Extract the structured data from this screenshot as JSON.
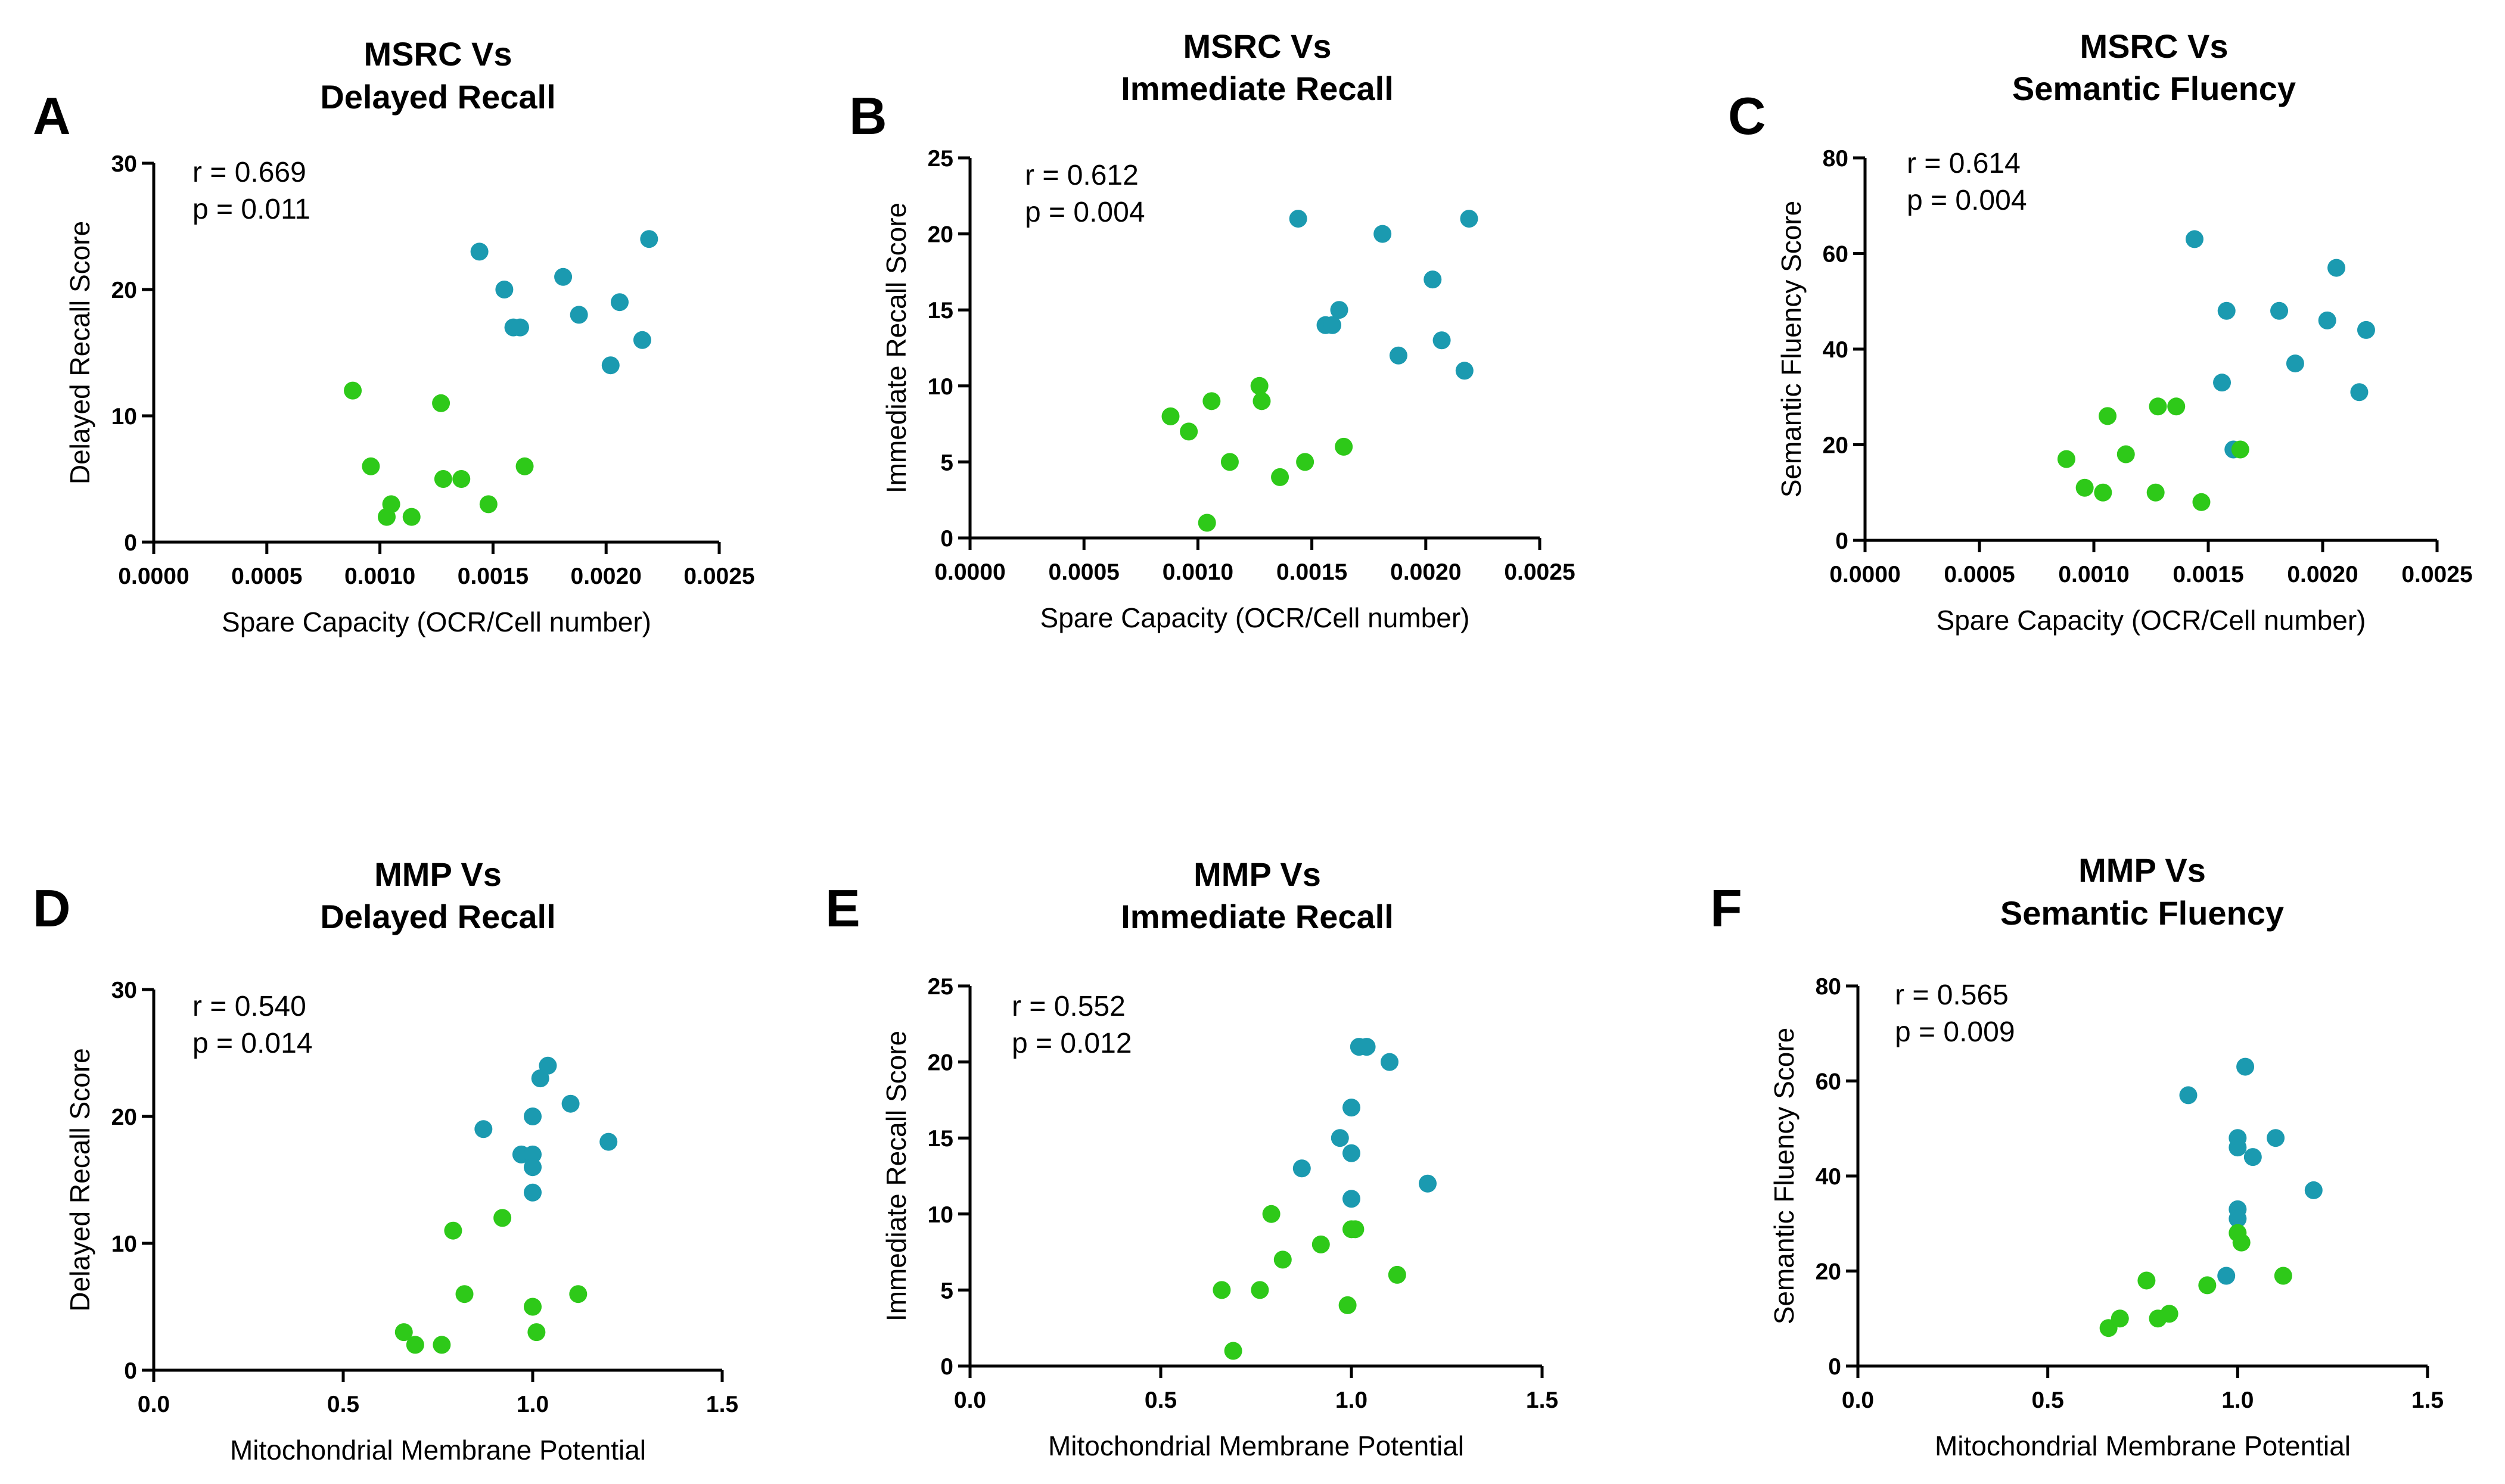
{
  "colors": {
    "group_blue": "#1b9ab0",
    "group_green": "#2ec919"
  },
  "chart_data": [
    {
      "id": "A",
      "type": "scatter",
      "title_line1": "MSRC Vs",
      "title_line2": "Delayed Recall",
      "xlabel": "Spare Capacity (OCR/Cell number)",
      "ylabel": "Delayed Recall Score",
      "xlim": [
        0,
        0.0025
      ],
      "ylim": [
        0,
        30
      ],
      "xticks": [
        "0.0000",
        "0.0005",
        "0.0010",
        "0.0015",
        "0.0020",
        "0.0025"
      ],
      "yticks": [
        "0",
        "10",
        "20",
        "30"
      ],
      "r_text": "r = 0.669",
      "p_text": "p = 0.011",
      "series": [
        {
          "name": "blue",
          "color": "#1b9ab0",
          "x": [
            0.00144,
            0.00155,
            0.00159,
            0.00162,
            0.00181,
            0.00188,
            0.00202,
            0.00206,
            0.00216,
            0.00219
          ],
          "y": [
            23,
            20,
            17,
            17,
            21,
            18,
            14,
            19,
            16,
            24
          ]
        },
        {
          "name": "green",
          "color": "#2ec919",
          "x": [
            0.00088,
            0.00096,
            0.00103,
            0.00105,
            0.00114,
            0.00127,
            0.00128,
            0.00136,
            0.00148,
            0.00164
          ],
          "y": [
            12,
            6,
            2,
            3,
            2,
            11,
            5,
            5,
            3,
            6
          ]
        }
      ]
    },
    {
      "id": "B",
      "type": "scatter",
      "title_line1": "MSRC Vs",
      "title_line2": "Immediate Recall",
      "xlabel": "Spare Capacity (OCR/Cell number)",
      "ylabel": "Immediate Recall Score",
      "xlim": [
        0,
        0.0025
      ],
      "ylim": [
        0,
        25
      ],
      "xticks": [
        "0.0000",
        "0.0005",
        "0.0010",
        "0.0015",
        "0.0020",
        "0.0025"
      ],
      "yticks": [
        "0",
        "5",
        "10",
        "15",
        "20",
        "25"
      ],
      "r_text": "r = 0.612",
      "p_text": "p = 0.004",
      "series": [
        {
          "name": "blue",
          "color": "#1b9ab0",
          "x": [
            0.00144,
            0.00156,
            0.00159,
            0.00162,
            0.00181,
            0.00188,
            0.00203,
            0.00207,
            0.00217,
            0.00219
          ],
          "y": [
            21,
            14,
            14,
            15,
            20,
            12,
            17,
            13,
            11,
            21
          ]
        },
        {
          "name": "green",
          "color": "#2ec919",
          "x": [
            0.00088,
            0.00096,
            0.00104,
            0.00106,
            0.00114,
            0.00127,
            0.00128,
            0.00136,
            0.00147,
            0.00164
          ],
          "y": [
            8,
            7,
            1,
            9,
            5,
            10,
            9,
            4,
            5,
            6
          ]
        }
      ]
    },
    {
      "id": "C",
      "type": "scatter",
      "title_line1": "MSRC Vs",
      "title_line2": "Semantic Fluency",
      "xlabel": "Spare Capacity (OCR/Cell number)",
      "ylabel": "Semantic Fluency Score",
      "xlim": [
        0,
        0.0025
      ],
      "ylim": [
        0,
        80
      ],
      "xticks": [
        "0.0000",
        "0.0005",
        "0.0010",
        "0.0015",
        "0.0020",
        "0.0025"
      ],
      "yticks": [
        "0",
        "20",
        "40",
        "60",
        "80"
      ],
      "r_text": "r = 0.614",
      "p_text": "p = 0.004",
      "series": [
        {
          "name": "blue",
          "color": "#1b9ab0",
          "x": [
            0.00144,
            0.00156,
            0.00158,
            0.00161,
            0.00181,
            0.00188,
            0.00202,
            0.00206,
            0.00216,
            0.00219
          ],
          "y": [
            63,
            33,
            48,
            19,
            48,
            37,
            46,
            57,
            31,
            44
          ]
        },
        {
          "name": "green",
          "color": "#2ec919",
          "x": [
            0.00088,
            0.00096,
            0.00104,
            0.00106,
            0.00114,
            0.00127,
            0.00128,
            0.00136,
            0.00147,
            0.00164
          ],
          "y": [
            17,
            11,
            10,
            26,
            18,
            10,
            28,
            28,
            8,
            19
          ]
        }
      ]
    },
    {
      "id": "D",
      "type": "scatter",
      "title_line1": "MMP Vs",
      "title_line2": "Delayed Recall",
      "xlabel": "Mitochondrial Membrane Potential",
      "ylabel": "Delayed Recall Score",
      "xlim": [
        0,
        1.5
      ],
      "ylim": [
        0,
        30
      ],
      "xticks": [
        "0.0",
        "0.5",
        "1.0",
        "1.5"
      ],
      "yticks": [
        "0",
        "10",
        "20",
        "30"
      ],
      "r_text": "r = 0.540",
      "p_text": "p = 0.014",
      "series": [
        {
          "name": "blue",
          "color": "#1b9ab0",
          "x": [
            0.87,
            0.97,
            1.0,
            1.0,
            1.0,
            1.0,
            1.02,
            1.04,
            1.1,
            1.2
          ],
          "y": [
            19,
            17,
            20,
            17,
            16,
            14,
            23,
            24,
            21,
            18
          ]
        },
        {
          "name": "green",
          "color": "#2ec919",
          "x": [
            0.66,
            0.69,
            0.76,
            0.79,
            0.82,
            0.92,
            1.0,
            1.01,
            1.12
          ],
          "y": [
            3,
            2,
            2,
            11,
            6,
            12,
            5,
            3,
            6
          ]
        }
      ]
    },
    {
      "id": "E",
      "type": "scatter",
      "title_line1": "MMP Vs",
      "title_line2": "Immediate Recall",
      "xlabel": "Mitochondrial Membrane Potential",
      "ylabel": "Immediate Recall Score",
      "xlim": [
        0,
        1.5
      ],
      "ylim": [
        0,
        25
      ],
      "xticks": [
        "0.0",
        "0.5",
        "1.0",
        "1.5"
      ],
      "yticks": [
        "0",
        "5",
        "10",
        "15",
        "20",
        "25"
      ],
      "r_text": "r = 0.552",
      "p_text": "p = 0.012",
      "series": [
        {
          "name": "blue",
          "color": "#1b9ab0",
          "x": [
            0.87,
            0.97,
            1.0,
            1.0,
            1.0,
            1.02,
            1.04,
            1.1,
            1.2
          ],
          "y": [
            13,
            15,
            17,
            14,
            11,
            21,
            21,
            20,
            12
          ]
        },
        {
          "name": "green",
          "color": "#2ec919",
          "x": [
            0.66,
            0.69,
            0.76,
            0.79,
            0.82,
            0.92,
            0.99,
            1.0,
            1.01,
            1.12
          ],
          "y": [
            5,
            1,
            5,
            10,
            7,
            8,
            4,
            9,
            9,
            6
          ]
        }
      ]
    },
    {
      "id": "F",
      "type": "scatter",
      "title_line1": "MMP Vs",
      "title_line2": "Semantic Fluency",
      "xlabel": "Mitochondrial Membrane Potential",
      "ylabel": "Semantic Fluency Score",
      "xlim": [
        0,
        1.5
      ],
      "ylim": [
        0,
        80
      ],
      "xticks": [
        "0.0",
        "0.5",
        "1.0",
        "1.5"
      ],
      "yticks": [
        "0",
        "20",
        "40",
        "60",
        "80"
      ],
      "r_text": "r = 0.565",
      "p_text": "p = 0.009",
      "series": [
        {
          "name": "blue",
          "color": "#1b9ab0",
          "x": [
            0.87,
            0.97,
            1.0,
            1.0,
            1.0,
            1.0,
            1.02,
            1.04,
            1.1,
            1.2
          ],
          "y": [
            57,
            19,
            48,
            46,
            33,
            31,
            63,
            44,
            48,
            37
          ]
        },
        {
          "name": "green",
          "color": "#2ec919",
          "x": [
            0.66,
            0.69,
            0.76,
            0.79,
            0.82,
            0.92,
            1.0,
            1.01,
            1.12
          ],
          "y": [
            8,
            10,
            18,
            10,
            11,
            17,
            28,
            26,
            19
          ]
        }
      ]
    }
  ]
}
